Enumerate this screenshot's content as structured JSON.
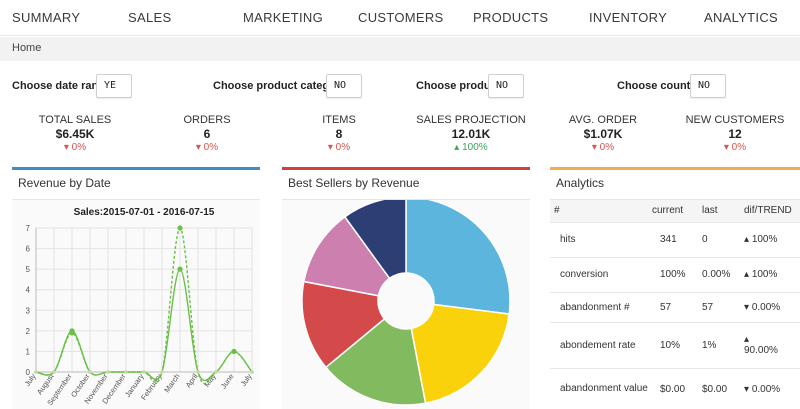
{
  "nav": {
    "items": [
      "SUMMARY",
      "SALES",
      "MARKETING",
      "CUSTOMERS",
      "PRODUCTS",
      "INVENTORY",
      "ANALYTICS"
    ]
  },
  "breadcrumb": {
    "home": "Home"
  },
  "filters": {
    "date_range": {
      "label": "Choose date range:",
      "value": "YE"
    },
    "product_category": {
      "label": "Choose product category:",
      "value": "NO"
    },
    "product": {
      "label": "Choose product:",
      "value": "NO"
    },
    "country": {
      "label": "Choose country:",
      "value": "NO"
    }
  },
  "kpis": [
    {
      "label": "TOTAL SALES",
      "value": "$6.45K",
      "trend": "0%",
      "direction": "down"
    },
    {
      "label": "ORDERS",
      "value": "6",
      "trend": "0%",
      "direction": "down"
    },
    {
      "label": "ITEMS",
      "value": "8",
      "trend": "0%",
      "direction": "down"
    },
    {
      "label": "SALES PROJECTION",
      "value": "12.01K",
      "trend": "100%",
      "direction": "up"
    },
    {
      "label": "AVG. ORDER",
      "value": "$1.07K",
      "trend": "0%",
      "direction": "down"
    },
    {
      "label": "NEW CUSTOMERS",
      "value": "12",
      "trend": "0%",
      "direction": "down"
    }
  ],
  "panels": {
    "revenue": {
      "title": "Revenue by Date"
    },
    "sellers": {
      "title": "Best Sellers by Revenue"
    },
    "analytics": {
      "title": "Analytics"
    }
  },
  "analytics_table": {
    "headers": [
      "#",
      "current",
      "last",
      "dif/TREND"
    ],
    "rows": [
      {
        "metric": "hits",
        "current": "341",
        "last": "0",
        "trend": "100%",
        "direction": "up"
      },
      {
        "metric": "conversion",
        "current": "100%",
        "last": "0.00%",
        "trend": "100%",
        "direction": "up"
      },
      {
        "metric": "abandonment #",
        "current": "57",
        "last": "57",
        "trend": "0.00%",
        "direction": "down"
      },
      {
        "metric": "abondement rate",
        "current": "10%",
        "last": "1%",
        "trend": "90.00%",
        "direction": "up"
      },
      {
        "metric": "abandonment value",
        "current": "$0.00",
        "last": "$0.00",
        "trend": "0.00%",
        "direction": "down"
      }
    ]
  },
  "colors": {
    "up": "#3aa55a",
    "down": "#d9534f"
  },
  "chart_data": [
    {
      "type": "line",
      "title": "Sales:2015-07-01 - 2016-07-15",
      "categories": [
        "July",
        "August",
        "September",
        "October",
        "November",
        "December",
        "January",
        "February",
        "March",
        "April",
        "May",
        "June",
        "July"
      ],
      "series": [
        {
          "values": [
            0,
            0,
            2,
            0,
            0,
            0,
            0,
            0,
            5,
            0,
            0,
            1,
            0
          ],
          "color": "#6cc04a",
          "style": "solid"
        },
        {
          "values": [
            0,
            0,
            1.9,
            0,
            0,
            0,
            0,
            0,
            7,
            0,
            0,
            1,
            0
          ],
          "color": "#6cc04a",
          "style": "dashed"
        }
      ],
      "ylim": [
        0,
        7
      ],
      "yticks": [
        0,
        1,
        2,
        3,
        4,
        5,
        6,
        7
      ],
      "grid": true
    },
    {
      "type": "pie",
      "donut": true,
      "slices": [
        {
          "value": 27,
          "color": "#5bb5dc"
        },
        {
          "value": 20,
          "color": "#f9d20b"
        },
        {
          "value": 17,
          "color": "#82bb5f"
        },
        {
          "value": 14,
          "color": "#d44a4a"
        },
        {
          "value": 12,
          "color": "#cd7fb0"
        },
        {
          "value": 10,
          "color": "#2d3e74"
        }
      ]
    }
  ]
}
